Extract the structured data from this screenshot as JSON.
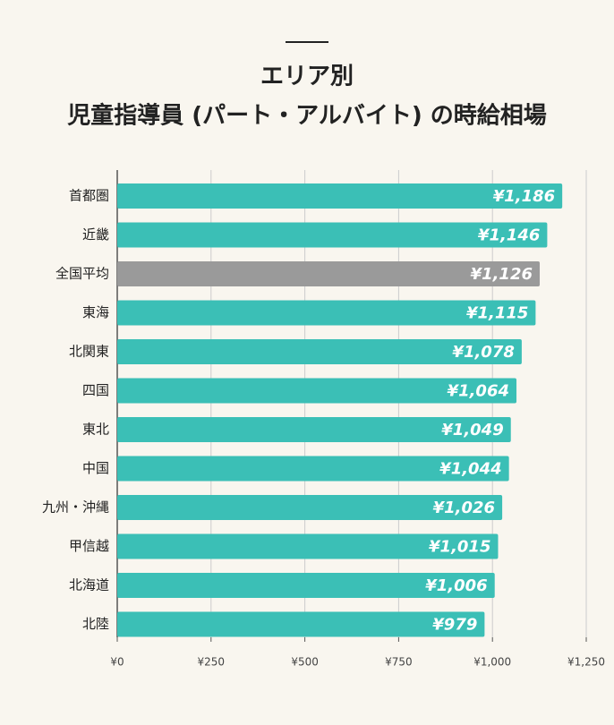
{
  "chart_data": {
    "type": "bar",
    "orientation": "horizontal",
    "title": [
      "エリア別",
      "児童指導員 (パート・アルバイト) の時給相場"
    ],
    "categories": [
      "首都圏",
      "近畿",
      "全国平均",
      "東海",
      "北関東",
      "四国",
      "東北",
      "中国",
      "九州・沖縄",
      "甲信越",
      "北海道",
      "北陸"
    ],
    "values": [
      1186,
      1146,
      1126,
      1115,
      1078,
      1064,
      1049,
      1044,
      1026,
      1015,
      1006,
      979
    ],
    "value_labels": [
      "¥1,186",
      "¥1,146",
      "¥1,126",
      "¥1,115",
      "¥1,078",
      "¥1,064",
      "¥1,049",
      "¥1,044",
      "¥1,026",
      "¥1,015",
      "¥1,006",
      "¥979"
    ],
    "colors": [
      "#3bbfb6",
      "#3bbfb6",
      "#9a9a9a",
      "#3bbfb6",
      "#3bbfb6",
      "#3bbfb6",
      "#3bbfb6",
      "#3bbfb6",
      "#3bbfb6",
      "#3bbfb6",
      "#3bbfb6",
      "#3bbfb6"
    ],
    "xlim": [
      0,
      1250
    ],
    "xticks": [
      {
        "value": 0,
        "label": "¥0"
      },
      {
        "value": 250,
        "label": "¥250"
      },
      {
        "value": 500,
        "label": "¥500"
      },
      {
        "value": 750,
        "label": "¥750"
      },
      {
        "value": 1000,
        "label": "¥1,000"
      },
      {
        "value": 1250,
        "label": "¥1,250"
      }
    ],
    "grid": true
  }
}
